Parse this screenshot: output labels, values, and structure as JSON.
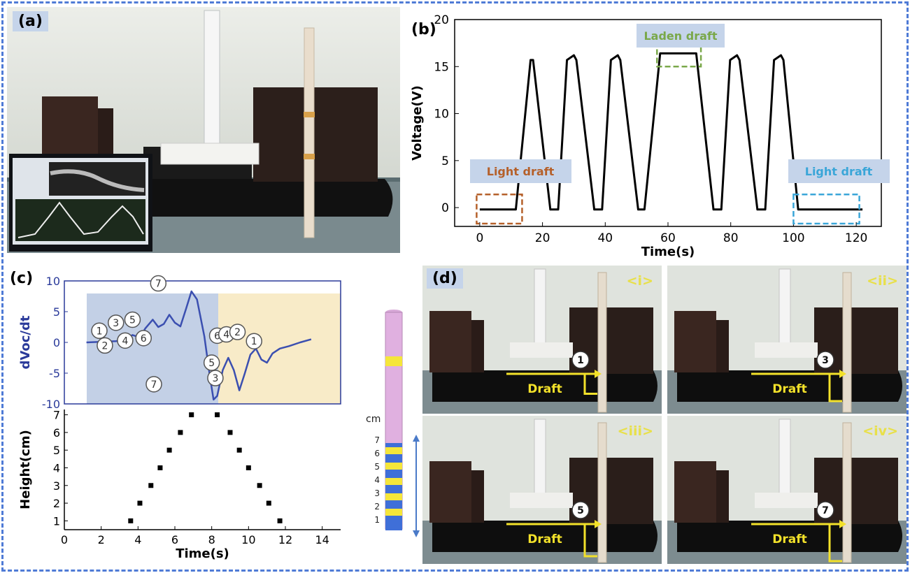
{
  "figure": {
    "panel_labels": {
      "a": "(a)",
      "b": "(b)",
      "c": "(c)",
      "d": "(d)"
    }
  },
  "panel_b": {
    "annotations": {
      "light_left": "Light draft",
      "laden": "Laden draft",
      "light_right": "Light draft"
    },
    "colors": {
      "light_left": "#b5602a",
      "laden": "#7aa84a",
      "light_right": "#3aa6d8",
      "tag_bg": "#c5d4ea"
    }
  },
  "panel_c": {
    "markers": [
      "1",
      "2",
      "3",
      "4",
      "5",
      "6",
      "7"
    ],
    "scale_label": "cm",
    "scale_ticks": [
      "1",
      "2",
      "3",
      "4",
      "5",
      "6",
      "7"
    ]
  },
  "panel_d": {
    "draft_label": "Draft",
    "subpanels": [
      {
        "tag": "<i>",
        "marker": "1"
      },
      {
        "tag": "<ii>",
        "marker": "3"
      },
      {
        "tag": "<iii>",
        "marker": "5"
      },
      {
        "tag": "<iv>",
        "marker": "7"
      }
    ]
  },
  "chart_data": [
    {
      "type": "line",
      "panel": "b",
      "xlabel": "Time(s)",
      "ylabel": "Voltage(V)",
      "xlim": [
        -8,
        128
      ],
      "ylim": [
        -2,
        20
      ],
      "xticks": [
        0,
        20,
        40,
        60,
        80,
        100,
        120
      ],
      "yticks": [
        0,
        5,
        10,
        15,
        20
      ],
      "x": [
        0,
        11.5,
        16.2,
        17,
        22.5,
        25,
        27.8,
        30,
        30.8,
        36.5,
        39,
        41.8,
        44,
        44.8,
        50.5,
        52.5,
        57.5,
        69,
        74.5,
        77,
        79.8,
        82,
        82.8,
        88.5,
        91,
        93.8,
        96,
        96.8,
        101.5,
        122
      ],
      "y": [
        -0.2,
        -0.2,
        15.7,
        15.7,
        -0.2,
        -0.2,
        15.7,
        16.2,
        15.7,
        -0.2,
        -0.2,
        15.7,
        16.2,
        15.7,
        -0.2,
        -0.2,
        16.4,
        16.4,
        -0.2,
        -0.2,
        15.7,
        16.2,
        15.7,
        -0.2,
        -0.2,
        15.7,
        16.2,
        15.7,
        -0.2,
        -0.2
      ]
    },
    {
      "type": "line",
      "panel": "c-top",
      "ylabel": "dVoc/dt",
      "xlim": [
        0,
        15
      ],
      "ylim": [
        -10,
        10
      ],
      "yticks": [
        -10,
        -5,
        0,
        5,
        10
      ],
      "x": [
        1.2,
        2.0,
        2.8,
        3.4,
        3.7,
        4.1,
        4.4,
        4.8,
        5.1,
        5.4,
        5.7,
        6.0,
        6.3,
        6.6,
        6.9,
        7.2,
        7.6,
        7.9,
        8.1,
        8.3,
        8.6,
        8.9,
        9.2,
        9.5,
        9.8,
        10.1,
        10.4,
        10.7,
        11.0,
        11.3,
        11.7,
        12.2,
        12.8,
        13.4
      ],
      "y": [
        0,
        0.1,
        0.2,
        0.6,
        1.2,
        0.8,
        2.3,
        3.7,
        2.5,
        3.0,
        4.5,
        3.2,
        2.6,
        5.4,
        8.3,
        7.0,
        1.0,
        -5.5,
        -9.3,
        -8.7,
        -4.5,
        -2.5,
        -4.5,
        -7.8,
        -5.0,
        -2.0,
        -1.0,
        -2.8,
        -3.3,
        -1.8,
        -1.0,
        -0.6,
        0.0,
        0.5
      ]
    },
    {
      "type": "scatter",
      "panel": "c-bottom",
      "xlabel": "Time(s)",
      "ylabel": "Height(cm)",
      "xlim": [
        0,
        15
      ],
      "ylim": [
        0.5,
        7.3
      ],
      "xticks": [
        0,
        2,
        4,
        6,
        8,
        10,
        12,
        14
      ],
      "yticks": [
        1,
        2,
        3,
        4,
        5,
        6,
        7
      ],
      "x": [
        3.6,
        4.1,
        4.7,
        5.2,
        5.7,
        6.3,
        6.9,
        8.3,
        9.0,
        9.5,
        10.0,
        10.6,
        11.1,
        11.7
      ],
      "y": [
        1,
        2,
        3,
        4,
        5,
        6,
        7,
        7,
        6,
        5,
        4,
        3,
        2,
        1
      ]
    }
  ]
}
